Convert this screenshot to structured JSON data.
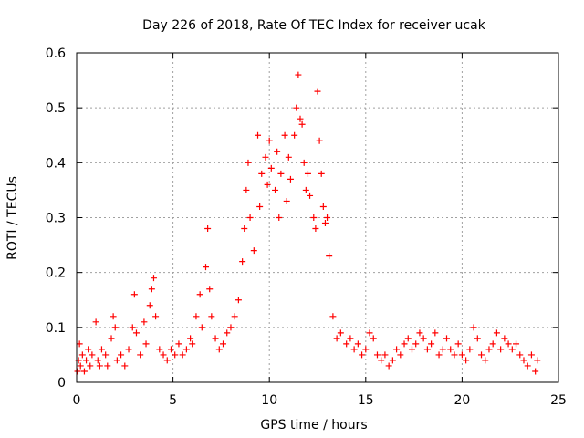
{
  "chart_data": {
    "type": "scatter",
    "title": "Day 226 of 2018, Rate Of TEC Index for receiver ucak",
    "xlabel": "GPS time / hours",
    "ylabel": "ROTI / TECUs",
    "xlim": [
      0,
      25
    ],
    "ylim": [
      0,
      0.6
    ],
    "xticks": [
      0,
      5,
      10,
      15,
      20,
      25
    ],
    "yticks": [
      0,
      0.1,
      0.2,
      0.3,
      0.4,
      0.5,
      0.6
    ],
    "xtick_labels": [
      "0",
      "5",
      "10",
      "15",
      "20",
      "25"
    ],
    "ytick_labels": [
      "0",
      "0.1",
      "0.2",
      "0.3",
      "0.4",
      "0.5",
      "0.6"
    ],
    "grid": true,
    "marker": "+",
    "color": "#ff0000",
    "series": [
      {
        "name": "ROTI",
        "points": [
          [
            0.05,
            0.02
          ],
          [
            0.1,
            0.04
          ],
          [
            0.15,
            0.07
          ],
          [
            0.2,
            0.03
          ],
          [
            0.3,
            0.05
          ],
          [
            0.4,
            0.02
          ],
          [
            0.5,
            0.04
          ],
          [
            0.6,
            0.06
          ],
          [
            0.7,
            0.03
          ],
          [
            0.8,
            0.05
          ],
          [
            1.0,
            0.11
          ],
          [
            1.1,
            0.04
          ],
          [
            1.2,
            0.03
          ],
          [
            1.3,
            0.06
          ],
          [
            1.5,
            0.05
          ],
          [
            1.6,
            0.03
          ],
          [
            1.8,
            0.08
          ],
          [
            1.9,
            0.12
          ],
          [
            2.0,
            0.1
          ],
          [
            2.1,
            0.04
          ],
          [
            2.3,
            0.05
          ],
          [
            2.5,
            0.03
          ],
          [
            2.7,
            0.06
          ],
          [
            2.9,
            0.1
          ],
          [
            3.0,
            0.16
          ],
          [
            3.1,
            0.09
          ],
          [
            3.3,
            0.05
          ],
          [
            3.5,
            0.11
          ],
          [
            3.6,
            0.07
          ],
          [
            3.8,
            0.14
          ],
          [
            3.9,
            0.17
          ],
          [
            4.0,
            0.19
          ],
          [
            4.1,
            0.12
          ],
          [
            4.3,
            0.06
          ],
          [
            4.5,
            0.05
          ],
          [
            4.7,
            0.04
          ],
          [
            4.9,
            0.06
          ],
          [
            5.1,
            0.05
          ],
          [
            5.3,
            0.07
          ],
          [
            5.5,
            0.05
          ],
          [
            5.7,
            0.06
          ],
          [
            5.9,
            0.08
          ],
          [
            6.0,
            0.07
          ],
          [
            6.2,
            0.12
          ],
          [
            6.4,
            0.16
          ],
          [
            6.5,
            0.1
          ],
          [
            6.7,
            0.21
          ],
          [
            6.8,
            0.28
          ],
          [
            6.9,
            0.17
          ],
          [
            7.0,
            0.12
          ],
          [
            7.2,
            0.08
          ],
          [
            7.4,
            0.06
          ],
          [
            7.6,
            0.07
          ],
          [
            7.8,
            0.09
          ],
          [
            8.0,
            0.1
          ],
          [
            8.2,
            0.12
          ],
          [
            8.4,
            0.15
          ],
          [
            8.6,
            0.22
          ],
          [
            8.7,
            0.28
          ],
          [
            8.8,
            0.35
          ],
          [
            8.9,
            0.4
          ],
          [
            9.0,
            0.3
          ],
          [
            9.2,
            0.24
          ],
          [
            9.4,
            0.45
          ],
          [
            9.5,
            0.32
          ],
          [
            9.6,
            0.38
          ],
          [
            9.8,
            0.41
          ],
          [
            9.9,
            0.36
          ],
          [
            10.0,
            0.44
          ],
          [
            10.1,
            0.39
          ],
          [
            10.3,
            0.35
          ],
          [
            10.4,
            0.42
          ],
          [
            10.5,
            0.3
          ],
          [
            10.6,
            0.38
          ],
          [
            10.8,
            0.45
          ],
          [
            10.9,
            0.33
          ],
          [
            11.0,
            0.41
          ],
          [
            11.1,
            0.37
          ],
          [
            11.3,
            0.45
          ],
          [
            11.4,
            0.5
          ],
          [
            11.5,
            0.56
          ],
          [
            11.6,
            0.48
          ],
          [
            11.7,
            0.47
          ],
          [
            11.8,
            0.4
          ],
          [
            11.9,
            0.35
          ],
          [
            12.0,
            0.38
          ],
          [
            12.1,
            0.34
          ],
          [
            12.3,
            0.3
          ],
          [
            12.4,
            0.28
          ],
          [
            12.5,
            0.53
          ],
          [
            12.6,
            0.44
          ],
          [
            12.7,
            0.38
          ],
          [
            12.8,
            0.32
          ],
          [
            12.9,
            0.29
          ],
          [
            13.0,
            0.3
          ],
          [
            13.1,
            0.23
          ],
          [
            13.3,
            0.12
          ],
          [
            13.5,
            0.08
          ],
          [
            13.7,
            0.09
          ],
          [
            14.0,
            0.07
          ],
          [
            14.2,
            0.08
          ],
          [
            14.4,
            0.06
          ],
          [
            14.6,
            0.07
          ],
          [
            14.8,
            0.05
          ],
          [
            15.0,
            0.06
          ],
          [
            15.2,
            0.09
          ],
          [
            15.4,
            0.08
          ],
          [
            15.6,
            0.05
          ],
          [
            15.8,
            0.04
          ],
          [
            16.0,
            0.05
          ],
          [
            16.2,
            0.03
          ],
          [
            16.4,
            0.04
          ],
          [
            16.6,
            0.06
          ],
          [
            16.8,
            0.05
          ],
          [
            17.0,
            0.07
          ],
          [
            17.2,
            0.08
          ],
          [
            17.4,
            0.06
          ],
          [
            17.6,
            0.07
          ],
          [
            17.8,
            0.09
          ],
          [
            18.0,
            0.08
          ],
          [
            18.2,
            0.06
          ],
          [
            18.4,
            0.07
          ],
          [
            18.6,
            0.09
          ],
          [
            18.8,
            0.05
          ],
          [
            19.0,
            0.06
          ],
          [
            19.2,
            0.08
          ],
          [
            19.4,
            0.06
          ],
          [
            19.6,
            0.05
          ],
          [
            19.8,
            0.07
          ],
          [
            20.0,
            0.05
          ],
          [
            20.2,
            0.04
          ],
          [
            20.4,
            0.06
          ],
          [
            20.6,
            0.1
          ],
          [
            20.8,
            0.08
          ],
          [
            21.0,
            0.05
          ],
          [
            21.2,
            0.04
          ],
          [
            21.4,
            0.06
          ],
          [
            21.6,
            0.07
          ],
          [
            21.8,
            0.09
          ],
          [
            22.0,
            0.06
          ],
          [
            22.2,
            0.08
          ],
          [
            22.4,
            0.07
          ],
          [
            22.6,
            0.06
          ],
          [
            22.8,
            0.07
          ],
          [
            23.0,
            0.05
          ],
          [
            23.2,
            0.04
          ],
          [
            23.4,
            0.03
          ],
          [
            23.6,
            0.05
          ],
          [
            23.8,
            0.02
          ],
          [
            23.9,
            0.04
          ]
        ]
      }
    ]
  }
}
